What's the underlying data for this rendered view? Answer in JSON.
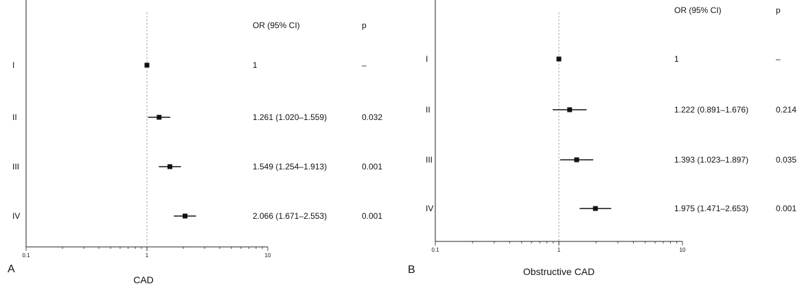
{
  "chart_data": [
    {
      "type": "forest",
      "panel_letter": "A",
      "xlabel": "CAD",
      "xscale": "log",
      "xlim": [
        0.1,
        10
      ],
      "xticks": [
        "0.1",
        "1",
        "10"
      ],
      "reference_line": 1,
      "column_headers": {
        "or": "OR (95% CI)",
        "p": "p"
      },
      "rows": [
        {
          "category": "I",
          "or": 1,
          "lower": 1,
          "upper": 1,
          "or_text": "1",
          "p_text": "–"
        },
        {
          "category": "II",
          "or": 1.261,
          "lower": 1.02,
          "upper": 1.559,
          "or_text": "1.261 (1.020–1.559)",
          "p_text": "0.032"
        },
        {
          "category": "III",
          "or": 1.549,
          "lower": 1.254,
          "upper": 1.913,
          "or_text": "1.549 (1.254–1.913)",
          "p_text": "0.001"
        },
        {
          "category": "IV",
          "or": 2.066,
          "lower": 1.671,
          "upper": 2.553,
          "or_text": "2.066 (1.671–2.553)",
          "p_text": "0.001"
        }
      ]
    },
    {
      "type": "forest",
      "panel_letter": "B",
      "xlabel": "Obstructive CAD",
      "xscale": "log",
      "xlim": [
        0.1,
        10
      ],
      "xticks": [
        "0.1",
        "1",
        "10"
      ],
      "reference_line": 1,
      "column_headers": {
        "or": "OR (95% CI)",
        "p": "p"
      },
      "rows": [
        {
          "category": "I",
          "or": 1,
          "lower": 1,
          "upper": 1,
          "or_text": "1",
          "p_text": "–"
        },
        {
          "category": "II",
          "or": 1.222,
          "lower": 0.891,
          "upper": 1.676,
          "or_text": "1.222 (0.891–1.676)",
          "p_text": "0.214"
        },
        {
          "category": "III",
          "or": 1.393,
          "lower": 1.023,
          "upper": 1.897,
          "or_text": "1.393 (1.023–1.897)",
          "p_text": "0.035"
        },
        {
          "category": "IV",
          "or": 1.975,
          "lower": 1.471,
          "upper": 2.653,
          "or_text": "1.975 (1.471–2.653)",
          "p_text": "0.001"
        }
      ]
    }
  ]
}
